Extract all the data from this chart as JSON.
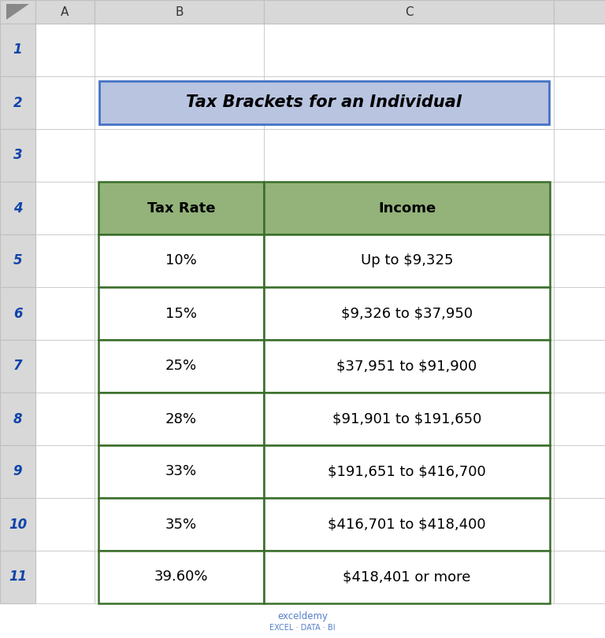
{
  "title": "Tax Brackets for an Individual",
  "title_bg_color": "#b8c4e0",
  "title_border_color": "#4472c4",
  "header_col1": "Tax Rate",
  "header_col2": "Income",
  "header_bg_color": "#93b37a",
  "header_border_color": "#3a6e2a",
  "rows": [
    [
      "10%",
      "Up to $9,325"
    ],
    [
      "15%",
      "$9,326 to $37,950"
    ],
    [
      "25%",
      "$37,951 to $91,900"
    ],
    [
      "28%",
      "$91,901 to $191,650"
    ],
    [
      "33%",
      "$191,651 to $416,700"
    ],
    [
      "35%",
      "$416,701 to $418,400"
    ],
    [
      "39.60%",
      "$418,401 or more"
    ]
  ],
  "row_bg_color": "#ffffff",
  "row_border_color": "#3a6e2a",
  "cell_text_color": "#000000",
  "header_text_color": "#000000",
  "col_header_bg": "#d8d8d8",
  "row_num_color": "#3355aa",
  "col_letter_color": "#333333",
  "fig_bg": "#f0f0f0",
  "spreadsheet_bg": "#e8e8e8",
  "watermark_text": "exceldemy",
  "watermark_sub": "EXCEL · DATA · BI",
  "watermark_color": "#4472c4",
  "corner_triangle_color": "#888888",
  "grid_line_color": "#c0c0c0",
  "row_num_font_color": "#1144aa"
}
